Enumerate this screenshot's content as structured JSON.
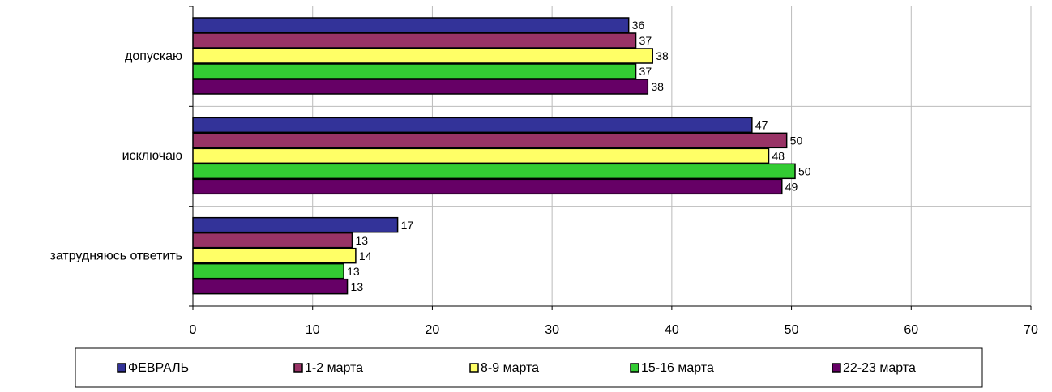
{
  "chart_data": {
    "type": "barh",
    "categories": [
      "допускаю",
      "исключаю",
      "затрудняюсь ответить"
    ],
    "series": [
      {
        "name": "ФЕВРАЛЬ",
        "color": "#333399",
        "values": [
          36.4,
          46.7,
          17.1
        ],
        "value_labels": [
          "36",
          "47",
          "17"
        ]
      },
      {
        "name": "1-2 марта",
        "color": "#993366",
        "values": [
          37.0,
          49.6,
          13.3
        ],
        "value_labels": [
          "37",
          "50",
          "13"
        ]
      },
      {
        "name": "8-9 марта",
        "color": "#ffff66",
        "values": [
          38.4,
          48.1,
          13.6
        ],
        "value_labels": [
          "38",
          "48",
          "14"
        ]
      },
      {
        "name": "15-16 марта",
        "color": "#33cc33",
        "values": [
          37.0,
          50.3,
          12.6
        ],
        "value_labels": [
          "37",
          "50",
          "13"
        ]
      },
      {
        "name": "22-23 марта",
        "color": "#660066",
        "values": [
          38.0,
          49.2,
          12.9
        ],
        "value_labels": [
          "38",
          "49",
          "13"
        ]
      }
    ],
    "xlim": [
      0,
      70
    ],
    "xticks": [
      0,
      10,
      20,
      30,
      40,
      50,
      60,
      70
    ],
    "grid": true,
    "legend": "bottom"
  }
}
